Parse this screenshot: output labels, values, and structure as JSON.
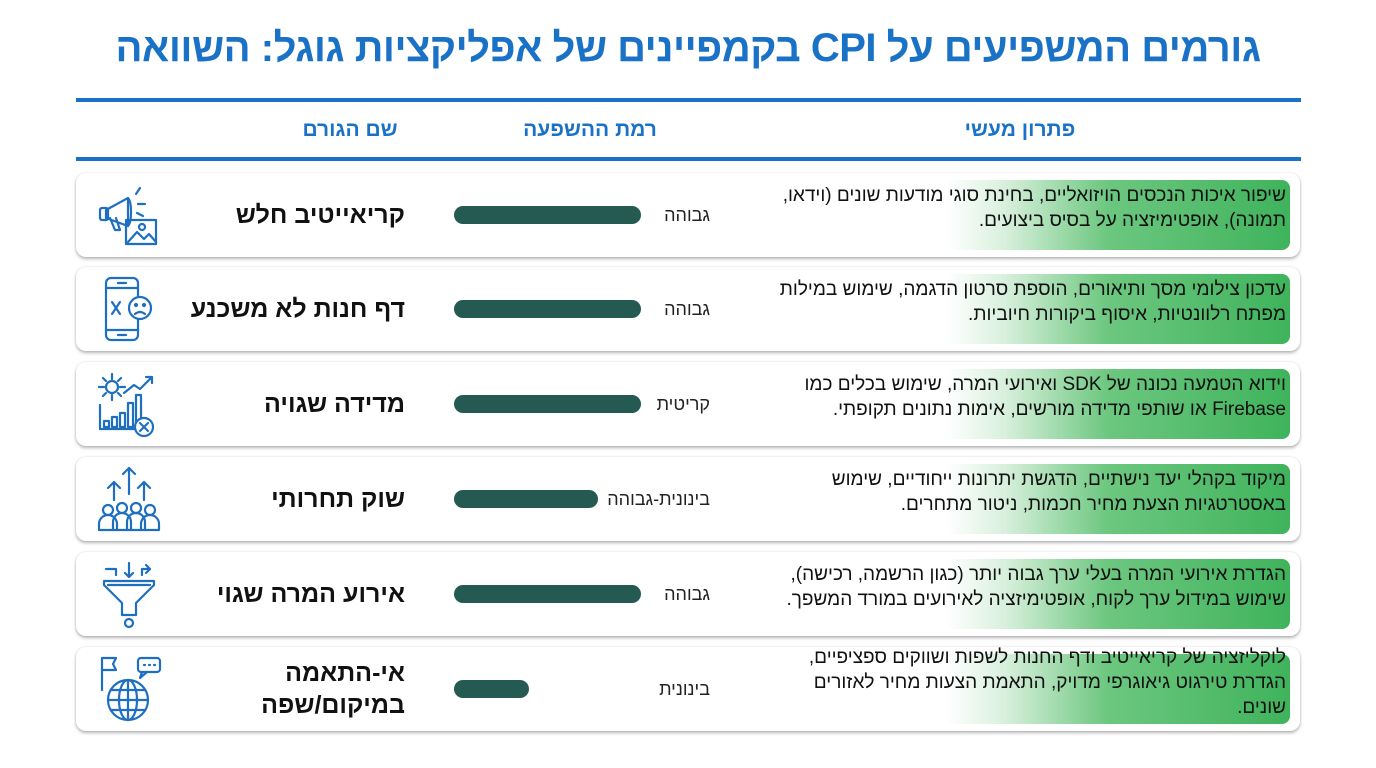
{
  "title": "גורמים המשפיעים על CPI בקמפיינים של אפליקציות גוגל: השוואה",
  "headers": {
    "factor": "שם הגורם",
    "impact": "רמת ההשפעה",
    "solution": "פתרון מעשי"
  },
  "colors": {
    "accent": "#1a72c6",
    "bar": "#245a52",
    "solution_highlight": "#3fb35c"
  },
  "rows": [
    {
      "icon": "megaphone-image-icon",
      "factor": "קריאייטיב חלש",
      "level": "גבוהה",
      "level_fraction": 1.0,
      "solution": "שיפור איכות הנכסים הויזואליים, בחינת סוגי מודעות שונים (וידאו, תמונה), אופטימיזציה על בסיס ביצועים."
    },
    {
      "icon": "phone-sad-face-icon",
      "factor": "דף חנות לא משכנע",
      "level": "גבוהה",
      "level_fraction": 1.0,
      "solution": "עדכון צילומי מסך ותיאורים, הוספת סרטון הדגמה, שימוש במילות מפתח רלוונטיות, איסוף ביקורות חיוביות."
    },
    {
      "icon": "gear-chart-error-icon",
      "factor": "מדידה שגויה",
      "level": "קריטית",
      "level_fraction": 1.0,
      "solution": "וידוא הטמעה נכונה של SDK ואירועי המרה, שימוש בכלים כמו Firebase או שותפי מדידה מורשים, אימות נתונים תקופתי."
    },
    {
      "icon": "crowd-arrows-icon",
      "factor": "שוק תחרותי",
      "level": "בינונית-גבוהה",
      "level_fraction": 0.77,
      "solution": "מיקוד בקהלי יעד נישתיים, הדגשת יתרונות ייחודיים, שימוש באסטרטגיות הצעת מחיר חכמות, ניטור מתחרים."
    },
    {
      "icon": "funnel-icon",
      "factor": "אירוע המרה שגוי",
      "level": "גבוהה",
      "level_fraction": 1.0,
      "solution": "הגדרת אירועי המרה בעלי ערך גבוה יותר (כגון הרשמה, רכישה), שימוש במידול ערך לקוח, אופטימיזציה לאירועים במורד המשפך."
    },
    {
      "icon": "globe-flag-chat-icon",
      "factor": "אי-התאמה במיקום/שפה",
      "level": "בינונית",
      "level_fraction": 0.4,
      "solution": "לוקליזציה של קריאייטיב ודף החנות לשפות ושווקים ספציפיים, הגדרת טירגוט גיאוגרפי מדויק, התאמת הצעות מחיר לאזורים שונים."
    }
  ]
}
